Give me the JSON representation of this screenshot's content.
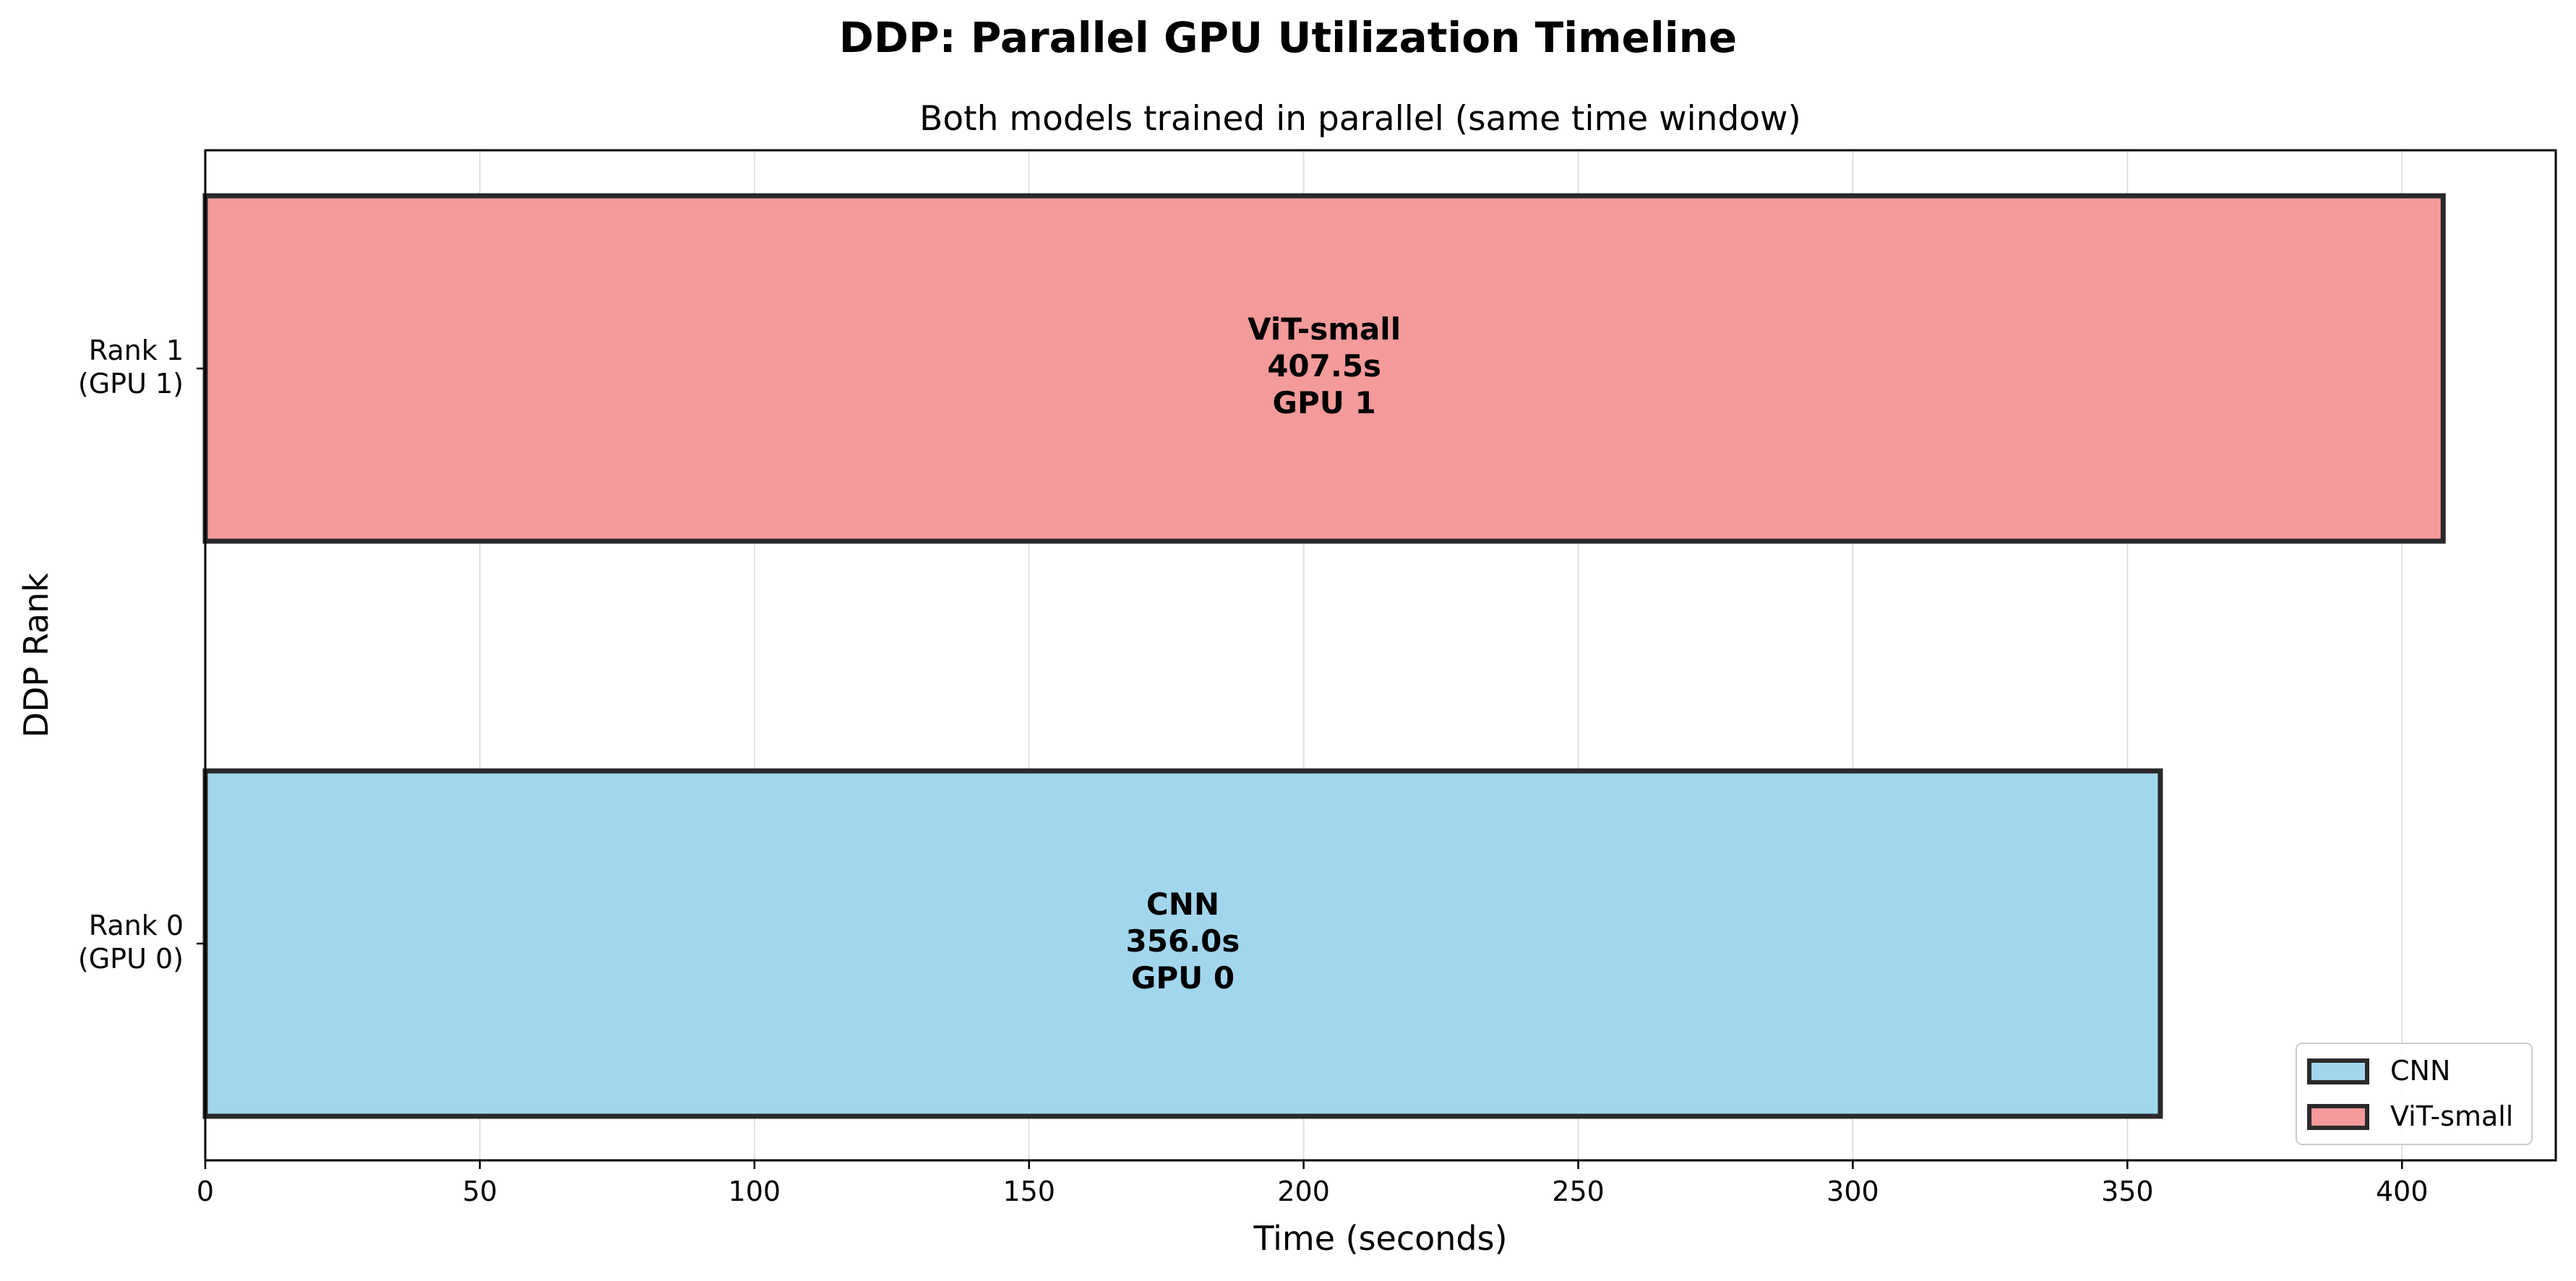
{
  "chart_data": {
    "type": "bar",
    "orientation": "horizontal",
    "title": "DDP: Parallel GPU Utilization Timeline",
    "subtitle": "Both models trained in parallel (same time window)",
    "xlabel": "Time (seconds)",
    "ylabel": "DDP Rank",
    "xlim": [
      0,
      428
    ],
    "xticks": [
      0,
      50,
      100,
      150,
      200,
      250,
      300,
      350,
      400
    ],
    "grid": "x",
    "legend_position": "lower-right",
    "categories": [
      {
        "line1": "Rank 0",
        "line2": "(GPU 0)"
      },
      {
        "line1": "Rank 1",
        "line2": "(GPU 1)"
      }
    ],
    "series": [
      {
        "name": "CNN",
        "rank": 0,
        "start": 0,
        "value": 356.0,
        "color": "#a1d6ed",
        "label": [
          "CNN",
          "356.0s",
          "GPU 0"
        ]
      },
      {
        "name": "ViT-small",
        "rank": 1,
        "start": 0,
        "value": 407.5,
        "color": "#f39a9a",
        "label": [
          "ViT-small",
          "407.5s",
          "GPU 1"
        ]
      }
    ],
    "edge_color": "#2a2a2a"
  }
}
